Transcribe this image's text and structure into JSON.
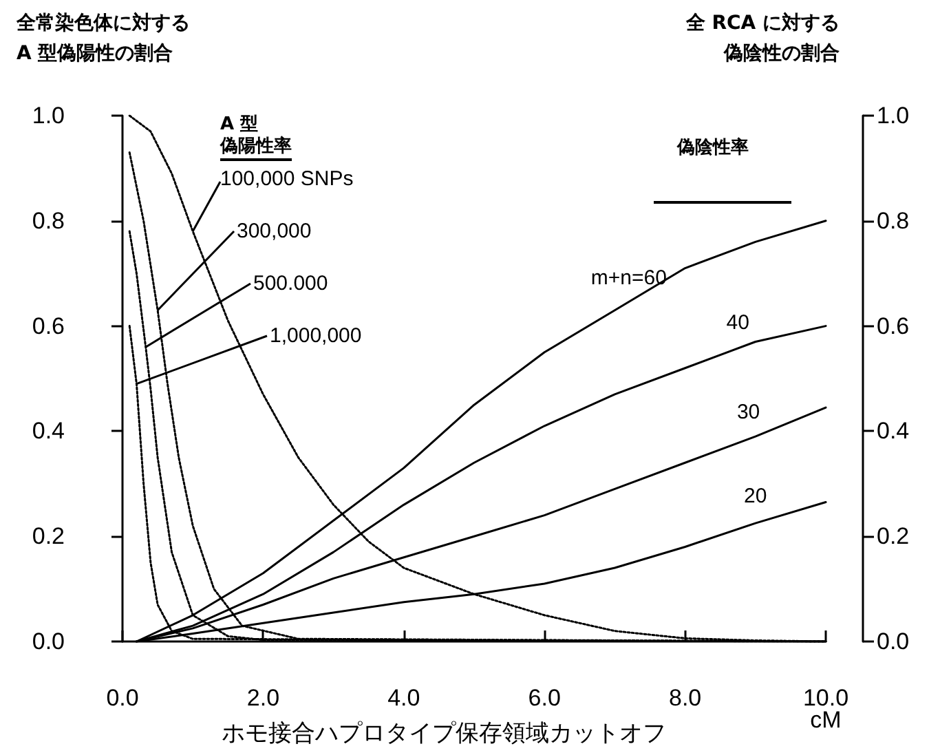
{
  "chart_data": {
    "type": "line",
    "xlabel": "ホモ接合ハプロタイプ保存領域カットオフ",
    "ylabel": "全常染色体に対するA 型偽陽性の割合",
    "y2label": "全 RCA に対する偽陰性の割合",
    "xlim": [
      0,
      10
    ],
    "xticks": [
      {
        "value": 0,
        "label": "0.0"
      },
      {
        "value": 2,
        "label": "2.0"
      },
      {
        "value": 4,
        "label": "4.0"
      },
      {
        "value": 6,
        "label": "6.0"
      },
      {
        "value": 8,
        "label": "8.0"
      },
      {
        "value": 10,
        "label": "10.0\ncM"
      }
    ],
    "ylim": [
      0,
      1
    ],
    "yticks": [
      {
        "value": 0,
        "label": "0.0"
      },
      {
        "value": 0.2,
        "label": "0.2"
      },
      {
        "value": 0.4,
        "label": "0.4"
      },
      {
        "value": 0.6,
        "label": "0.6"
      },
      {
        "value": 0.8,
        "label": "0.8"
      },
      {
        "value": 1,
        "label": "1.0"
      }
    ],
    "y2lim": [
      0,
      1
    ],
    "y2ticks": [
      {
        "value": 0,
        "label": "0.0"
      },
      {
        "value": 0.2,
        "label": "0.2"
      },
      {
        "value": 0.4,
        "label": "0.4"
      },
      {
        "value": 0.6,
        "label": "0.6"
      },
      {
        "value": 0.8,
        "label": "0.8"
      },
      {
        "value": 1,
        "label": "1.0"
      }
    ],
    "grid": false,
    "marker": "none",
    "series": [
      {
        "color": "#000000",
        "line_style": "dotted",
        "x": [
          0.1,
          0.4,
          0.7,
          1,
          1.5,
          2,
          2.5,
          3,
          3.5,
          4,
          5,
          6,
          7,
          8,
          9,
          10
        ],
        "values": [
          1.0,
          0.97,
          0.89,
          0.78,
          0.61,
          0.47,
          0.35,
          0.26,
          0.19,
          0.14,
          0.09,
          0.05,
          0.02,
          0.006,
          0.002,
          0
        ]
      },
      {
        "color": "#000000",
        "line_style": "dotted",
        "x": [
          0.1,
          0.3,
          0.5,
          0.64,
          0.8,
          1,
          1.3,
          1.7,
          2.5,
          10
        ],
        "values": [
          0.93,
          0.8,
          0.63,
          0.49,
          0.35,
          0.22,
          0.1,
          0.03,
          0.005,
          0
        ]
      },
      {
        "color": "#000000",
        "line_style": "dotted",
        "x": [
          0.1,
          0.2,
          0.33,
          0.4,
          0.5,
          0.7,
          1,
          1.5,
          2,
          10
        ],
        "values": [
          0.78,
          0.7,
          0.56,
          0.48,
          0.35,
          0.17,
          0.05,
          0.01,
          0.003,
          0
        ]
      },
      {
        "color": "#000000",
        "line_style": "dotted",
        "x": [
          0.1,
          0.2,
          0.3,
          0.4,
          0.5,
          0.7,
          1,
          10
        ],
        "values": [
          0.6,
          0.49,
          0.3,
          0.15,
          0.07,
          0.02,
          0.005,
          0
        ]
      },
      {
        "color": "#000000",
        "line_style": "solid",
        "axis": "y2",
        "x": [
          0.2,
          1,
          2,
          3,
          4,
          5,
          6,
          7,
          8,
          9,
          10
        ],
        "values": [
          0,
          0.05,
          0.13,
          0.23,
          0.33,
          0.45,
          0.55,
          0.63,
          0.71,
          0.76,
          0.8
        ]
      },
      {
        "color": "#000000",
        "line_style": "solid",
        "axis": "y2",
        "x": [
          0.2,
          1,
          2,
          3,
          4,
          5,
          6,
          7,
          8,
          9,
          10
        ],
        "values": [
          0,
          0.03,
          0.09,
          0.17,
          0.26,
          0.34,
          0.41,
          0.47,
          0.52,
          0.57,
          0.6
        ]
      },
      {
        "color": "#000000",
        "line_style": "solid",
        "axis": "y2",
        "x": [
          0.2,
          1,
          2,
          3,
          4,
          5,
          6,
          7,
          8,
          9,
          10
        ],
        "values": [
          0,
          0.025,
          0.07,
          0.12,
          0.16,
          0.2,
          0.24,
          0.29,
          0.34,
          0.39,
          0.445
        ]
      },
      {
        "color": "#000000",
        "line_style": "solid",
        "axis": "y2",
        "x": [
          0.2,
          1,
          2,
          3,
          4,
          5,
          6,
          7,
          8,
          9,
          10
        ],
        "values": [
          0,
          0.015,
          0.035,
          0.055,
          0.075,
          0.09,
          0.11,
          0.14,
          0.18,
          0.225,
          0.265
        ]
      }
    ],
    "annotations": [
      {
        "text": "100,000 SNPs",
        "x": 1,
        "y": 0.78
      },
      {
        "text": "300,000",
        "x": 0.5,
        "y": 0.63
      },
      {
        "text": "500.000",
        "x": 0.33,
        "y": 0.56
      },
      {
        "text": "1,000,000",
        "x": 0.2,
        "y": 0.49
      },
      {
        "text": "m+n=60",
        "x": 7.2,
        "y": 0.64
      },
      {
        "text": "40",
        "x": 8.75,
        "y": 0.555
      },
      {
        "text": "30",
        "x": 8.9,
        "y": 0.385
      },
      {
        "text": "20",
        "x": 9.0,
        "y": 0.225
      },
      "A 型",
      "偽陽性率",
      "偽陰性率"
    ]
  }
}
